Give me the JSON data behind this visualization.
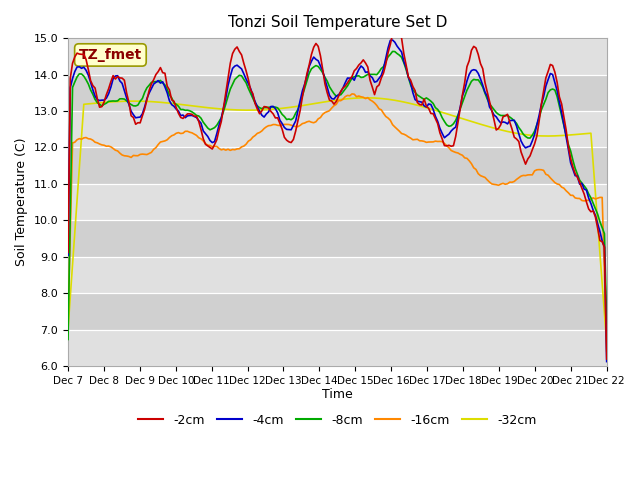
{
  "title": "Tonzi Soil Temperature Set D",
  "xlabel": "Time",
  "ylabel": "Soil Temperature (C)",
  "ylim": [
    6.0,
    15.0
  ],
  "yticks": [
    6.0,
    7.0,
    8.0,
    9.0,
    10.0,
    11.0,
    12.0,
    13.0,
    14.0,
    15.0
  ],
  "xtick_labels": [
    "Dec 7",
    "Dec 8",
    "Dec 9",
    "Dec 10",
    "Dec 11",
    "Dec 12",
    "Dec 13",
    "Dec 14",
    "Dec 15",
    "Dec 16",
    "Dec 17",
    "Dec 18",
    "Dec 19",
    "Dec 20",
    "Dec 21",
    "Dec 22"
  ],
  "series_colors": [
    "#cc0000",
    "#0000cc",
    "#00aa00",
    "#ff8800",
    "#dddd00"
  ],
  "series_labels": [
    "-2cm",
    "-4cm",
    "-8cm",
    "-16cm",
    "-32cm"
  ],
  "legend_label": "TZ_fmet",
  "n_points": 240,
  "background_color": "#ffffff",
  "plot_bg_color": "#e8e8e8"
}
